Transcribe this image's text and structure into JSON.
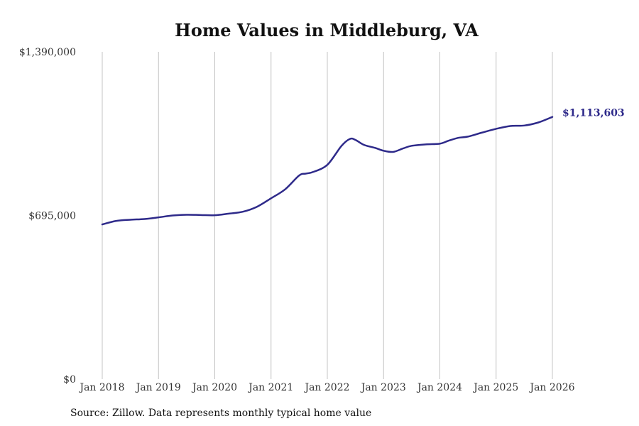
{
  "chart_data": {
    "type": "line",
    "title": "Home Values in Middleburg, VA",
    "xlabel": "",
    "ylabel": "",
    "ylim": [
      0,
      1390000
    ],
    "y_ticks": [
      0,
      695000,
      1390000
    ],
    "y_tick_labels": [
      "$0",
      "$695,000",
      "$1,390,000"
    ],
    "x_ticks": [
      2018,
      2019,
      2020,
      2021,
      2022,
      2023,
      2024,
      2025,
      2026
    ],
    "x_tick_labels": [
      "Jan 2018",
      "Jan 2019",
      "Jan 2020",
      "Jan 2021",
      "Jan 2022",
      "Jan 2023",
      "Jan 2024",
      "Jan 2025",
      "Jan 2026"
    ],
    "grid": "vertical",
    "series": [
      {
        "name": "Typical home value",
        "color": "#2e2a8a",
        "end_label": "$1,113,603",
        "x": [
          2018.0,
          2018.25,
          2018.5,
          2018.75,
          2019.0,
          2019.25,
          2019.5,
          2019.75,
          2020.0,
          2020.25,
          2020.5,
          2020.75,
          2021.0,
          2021.25,
          2021.5,
          2021.625,
          2021.75,
          2022.0,
          2022.25,
          2022.4,
          2022.5,
          2022.65,
          2022.85,
          2023.0,
          2023.17,
          2023.35,
          2023.5,
          2023.75,
          2024.0,
          2024.15,
          2024.33,
          2024.5,
          2024.75,
          2025.0,
          2025.25,
          2025.5,
          2025.75,
          2026.0
        ],
        "values": [
          657000,
          672000,
          677000,
          680000,
          687000,
          695000,
          698000,
          697000,
          696000,
          703000,
          711000,
          732000,
          768000,
          806000,
          865000,
          873000,
          880000,
          910000,
          990000,
          1020000,
          1016000,
          995000,
          982000,
          970000,
          965000,
          980000,
          991000,
          997000,
          1000000,
          1012000,
          1025000,
          1030000,
          1047000,
          1063000,
          1075000,
          1077000,
          1090000,
          1113603
        ]
      }
    ],
    "source_note": "Source: Zillow. Data represents monthly typical home value"
  }
}
